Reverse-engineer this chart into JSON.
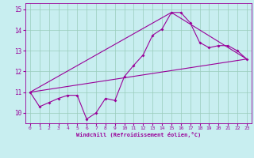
{
  "title": "",
  "xlabel": "Windchill (Refroidissement éolien,°C)",
  "bg_color": "#c8eef0",
  "line_color": "#990099",
  "grid_color": "#99ccbb",
  "xlim": [
    -0.5,
    23.5
  ],
  "ylim": [
    9.5,
    15.3
  ],
  "yticks": [
    10,
    11,
    12,
    13,
    14,
    15
  ],
  "xticks": [
    0,
    1,
    2,
    3,
    4,
    5,
    6,
    7,
    8,
    9,
    10,
    11,
    12,
    13,
    14,
    15,
    16,
    17,
    18,
    19,
    20,
    21,
    22,
    23
  ],
  "series1_x": [
    0,
    1,
    2,
    3,
    4,
    5,
    6,
    7,
    8,
    9,
    10,
    11,
    12,
    13,
    14,
    15,
    16,
    17,
    18,
    19,
    20,
    21,
    22,
    23
  ],
  "series1_y": [
    11.0,
    10.3,
    10.5,
    10.7,
    10.85,
    10.85,
    9.7,
    10.0,
    10.7,
    10.6,
    11.75,
    12.3,
    12.8,
    13.75,
    14.05,
    14.85,
    14.85,
    14.35,
    13.4,
    13.15,
    13.25,
    13.25,
    13.0,
    12.6
  ],
  "series2_x": [
    0,
    23
  ],
  "series2_y": [
    11.0,
    12.6
  ],
  "series3_x": [
    0,
    15,
    23
  ],
  "series3_y": [
    11.0,
    14.85,
    12.6
  ]
}
